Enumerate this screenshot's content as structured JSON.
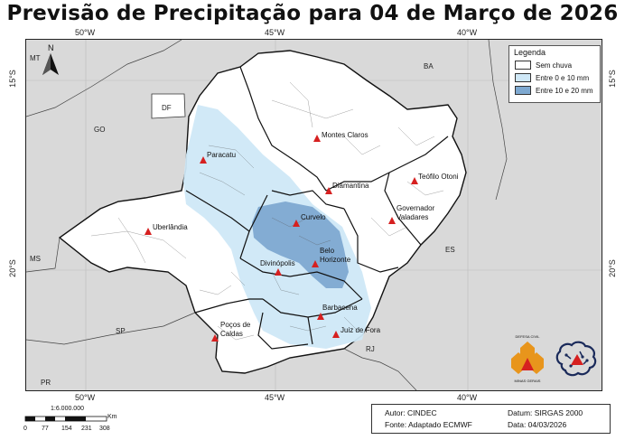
{
  "title": "Previsão de Precipitação para 04 de Março de 2026",
  "grid_labels": {
    "top": [
      "50°W",
      "45°W",
      "40°W"
    ],
    "bottom": [
      "50°W",
      "45°W",
      "40°W"
    ],
    "left": [
      "15°S",
      "20°S"
    ],
    "right": [
      "15°S",
      "20°S"
    ]
  },
  "states": [
    "MT",
    "BA",
    "DF",
    "GO",
    "MS",
    "ES",
    "SP",
    "RJ",
    "PR"
  ],
  "cities": [
    "Montes Claros",
    "Paracatu",
    "Teófilo Otoni",
    "Diamantina",
    "Governador",
    "Valadares",
    "Curvelo",
    "Uberlândia",
    "Belo",
    "Horizonte",
    "Divinópolis",
    "Barbacena",
    "Poços de",
    "Caldas",
    "Juiz de Fora"
  ],
  "north_arrow": "N",
  "legend": {
    "title": "Legenda",
    "items": [
      {
        "label": "Sem chuva",
        "color": "#ffffff"
      },
      {
        "label": "Entre 0 e 10 mm",
        "color": "#cfe8f7"
      },
      {
        "label": "Entre 10 e 20 mm",
        "color": "#7ea9d1"
      }
    ]
  },
  "scale": {
    "ratio": "1:6.000.000",
    "unit": "Km",
    "ticks": [
      "0",
      "77",
      "154",
      "231",
      "308"
    ]
  },
  "info": {
    "author": "Autor: CINDEC",
    "source": "Fonte: Adaptado ECMWF",
    "datum": "Datum: SIRGAS 2000",
    "date": "Data: 04/03/2026"
  },
  "logo": {
    "defesa_top": "DEFESA CIVIL",
    "defesa_bottom": "MINAS GERAIS"
  },
  "colors": {
    "outside": "#d9d9d9",
    "state_fill": "#ffffff",
    "light_rain": "#cfe8f7",
    "mod_rain": "#7ea9d1",
    "marker": "#d62020",
    "logo_orange": "#e8951c"
  }
}
